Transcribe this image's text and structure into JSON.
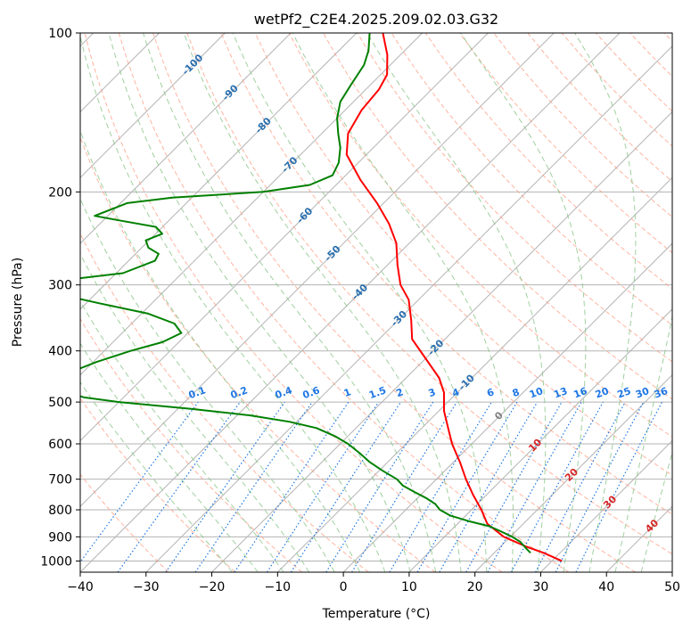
{
  "chart_data": {
    "type": "line",
    "title": "wetPf2_C2E4.2025.209.02.03.G32",
    "xlabel": "Temperature (°C)",
    "ylabel": "Pressure (hPa)",
    "xlim": [
      -40,
      50
    ],
    "ylim": [
      1050,
      100
    ],
    "y_scale": "log",
    "grid": true,
    "x_ticks": [
      -40,
      -30,
      -20,
      -10,
      0,
      10,
      20,
      30,
      40,
      50
    ],
    "x_tick_labels": [
      "−40",
      "−30",
      "−20",
      "−10",
      "0",
      "10",
      "20",
      "30",
      "40",
      "50"
    ],
    "y_ticks": [
      100,
      200,
      300,
      400,
      500,
      600,
      700,
      800,
      900,
      1000
    ],
    "y_tick_labels": [
      "100",
      "200",
      "300",
      "400",
      "500",
      "600",
      "700",
      "800",
      "900",
      "1000"
    ],
    "skew_deg": 45,
    "series": [
      {
        "color": "#ff0000",
        "points": [
          [
            1000,
            31.5
          ],
          [
            965,
            27.5
          ],
          [
            940,
            24.0
          ],
          [
            900,
            19.0
          ],
          [
            850,
            14.5
          ],
          [
            800,
            11.5
          ],
          [
            750,
            8.0
          ],
          [
            700,
            4.5
          ],
          [
            650,
            1.0
          ],
          [
            600,
            -3.0
          ],
          [
            560,
            -6.0
          ],
          [
            520,
            -9.2
          ],
          [
            480,
            -12.0
          ],
          [
            450,
            -15.0
          ],
          [
            410,
            -20.5
          ],
          [
            380,
            -25.0
          ],
          [
            350,
            -28.0
          ],
          [
            320,
            -31.5
          ],
          [
            300,
            -35.0
          ],
          [
            275,
            -38.5
          ],
          [
            250,
            -42.0
          ],
          [
            230,
            -46.0
          ],
          [
            210,
            -51.0
          ],
          [
            190,
            -57.0
          ],
          [
            170,
            -63.0
          ],
          [
            155,
            -66.0
          ],
          [
            140,
            -67.5
          ],
          [
            128,
            -68.0
          ],
          [
            120,
            -69.0
          ],
          [
            110,
            -72.0
          ],
          [
            100,
            -76.0
          ]
        ]
      },
      {
        "color": "#008000",
        "points": [
          [
            965,
            25.5
          ],
          [
            950,
            24.4
          ],
          [
            920,
            22.3
          ],
          [
            900,
            20.3
          ],
          [
            880,
            17.9
          ],
          [
            860,
            15.3
          ],
          [
            840,
            11.2
          ],
          [
            820,
            7.6
          ],
          [
            800,
            5.2
          ],
          [
            780,
            3.6
          ],
          [
            760,
            1.3
          ],
          [
            740,
            -1.4
          ],
          [
            720,
            -4.1
          ],
          [
            700,
            -6.0
          ],
          [
            675,
            -9.4
          ],
          [
            650,
            -12.7
          ],
          [
            625,
            -15.6
          ],
          [
            600,
            -18.8
          ],
          [
            580,
            -22.0
          ],
          [
            560,
            -26.0
          ],
          [
            545,
            -31.0
          ],
          [
            530,
            -38.0
          ],
          [
            515,
            -48.0
          ],
          [
            500,
            -60.0
          ],
          [
            490,
            -66.0
          ],
          [
            480,
            -69.0
          ],
          [
            470,
            -71.0
          ],
          [
            460,
            -72.5
          ],
          [
            440,
            -72.0
          ],
          [
            420,
            -69.5
          ],
          [
            400,
            -66.0
          ],
          [
            385,
            -62.5
          ],
          [
            370,
            -61.0
          ],
          [
            355,
            -63.5
          ],
          [
            340,
            -69.0
          ],
          [
            325,
            -78.0
          ],
          [
            310,
            -87.0
          ],
          [
            302,
            -90.0
          ],
          [
            295,
            -88.0
          ],
          [
            285,
            -79.0
          ],
          [
            270,
            -76.0
          ],
          [
            262,
            -76.5
          ],
          [
            255,
            -79.0
          ],
          [
            247,
            -80.5
          ],
          [
            240,
            -79.0
          ],
          [
            233,
            -81.0
          ],
          [
            226,
            -88.0
          ],
          [
            222,
            -92.0
          ],
          [
            210,
            -89.0
          ],
          [
            205,
            -83.0
          ],
          [
            200,
            -70.0
          ],
          [
            194,
            -64.0
          ],
          [
            186,
            -62.0
          ],
          [
            176,
            -63.0
          ],
          [
            165,
            -65.0
          ],
          [
            155,
            -67.5
          ],
          [
            145,
            -70.0
          ],
          [
            135,
            -72.0
          ],
          [
            125,
            -73.0
          ],
          [
            115,
            -74.0
          ],
          [
            108,
            -75.5
          ],
          [
            100,
            -78.0
          ]
        ]
      }
    ],
    "isotherm_labels": [
      "-100",
      "-90",
      "-80",
      "-70",
      "-60",
      "-50",
      "-40",
      "-30",
      "-20",
      "-10",
      "0",
      "10",
      "20",
      "30",
      "40"
    ],
    "isotherm_label_values": [
      -100,
      -90,
      -80,
      -70,
      -60,
      -50,
      -40,
      -30,
      -20,
      -10,
      0,
      10,
      20,
      30,
      40
    ],
    "isotherm_label_pressures": [
      115,
      130,
      150,
      178,
      222,
      262,
      310,
      348,
      395,
      460,
      532,
      605,
      688,
      775,
      860
    ],
    "mixing_ratio_labels": [
      "0.1",
      "0.2",
      "0.4",
      "0.6",
      "1",
      "1.5",
      "2",
      "3",
      "4",
      "6",
      "8",
      "10",
      "13",
      "16",
      "20",
      "25",
      "30",
      "36"
    ],
    "mixing_ratio_values": [
      0.1,
      0.2,
      0.4,
      0.6,
      1,
      1.5,
      2,
      3,
      4,
      6,
      8,
      10,
      13,
      16,
      20,
      25,
      30,
      36
    ],
    "colors": {
      "temperature": "#ff0000",
      "dewpoint": "#008000",
      "isotherm_grid": "#b3b3b3",
      "dry_adiabat": "#ff9b80",
      "moist_adiabat": "#88c488",
      "mixing_ratio": "#1f77e4",
      "isotherm_label_cold": "#2a6fb0",
      "isotherm_label_zero": "#808080",
      "isotherm_label_warm": "#d62728"
    }
  }
}
